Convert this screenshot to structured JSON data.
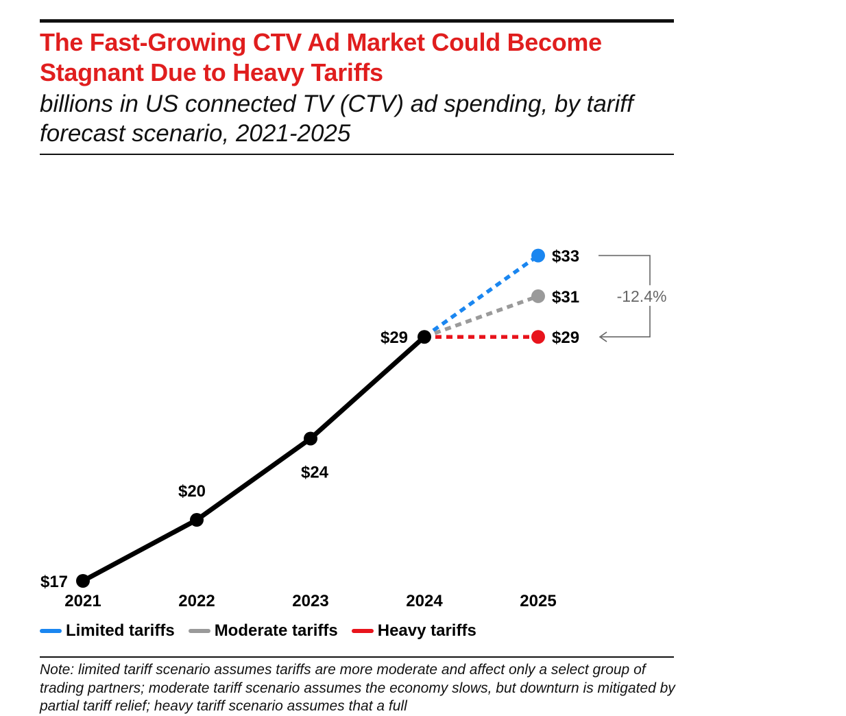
{
  "header": {
    "title": "The Fast-Growing CTV Ad Market Could Become Stagnant Due to Heavy Tariffs",
    "subtitle": "billions in US connected TV (CTV) ad spending, by tariff forecast scenario, 2021-2025"
  },
  "colors": {
    "title": "#e01e1e",
    "actual": "#000000",
    "limited": "#1a86f0",
    "moderate": "#9a9a9a",
    "heavy": "#e8141c",
    "annotation": "#666666"
  },
  "chart_data": {
    "type": "line",
    "title": "The Fast-Growing CTV Ad Market Could Become Stagnant Due to Heavy Tariffs",
    "subtitle": "billions in US connected TV (CTV) ad spending, by tariff forecast scenario, 2021-2025",
    "x": [
      "2021",
      "2022",
      "2023",
      "2024",
      "2025"
    ],
    "xlabel": "",
    "ylabel": "",
    "ylim": [
      17,
      33
    ],
    "grid": false,
    "actual": {
      "x": [
        "2021",
        "2022",
        "2023",
        "2024"
      ],
      "values": [
        17,
        20,
        24,
        29
      ],
      "labels": [
        "$17",
        "$20",
        "$24",
        "$29"
      ]
    },
    "series": [
      {
        "name": "Limited tariffs",
        "x": [
          "2024",
          "2025"
        ],
        "values": [
          29,
          33
        ],
        "end_label": "$33",
        "color": "#1a86f0",
        "style": "dashed"
      },
      {
        "name": "Moderate tariffs",
        "x": [
          "2024",
          "2025"
        ],
        "values": [
          29,
          31
        ],
        "end_label": "$31",
        "color": "#9a9a9a",
        "style": "dashed"
      },
      {
        "name": "Heavy tariffs",
        "x": [
          "2024",
          "2025"
        ],
        "values": [
          29,
          29
        ],
        "end_label": "$29",
        "color": "#e8141c",
        "style": "dashed"
      }
    ],
    "annotations": [
      {
        "text": "-12.4%",
        "from_series": "Limited tariffs",
        "to_series": "Heavy tariffs"
      }
    ],
    "legend": {
      "position": "bottom-left",
      "entries": [
        "Limited tariffs",
        "Moderate tariffs",
        "Heavy tariffs"
      ]
    }
  },
  "note": "Note: limited tariff scenario assumes tariffs are more moderate and affect only a select group of trading partners; moderate tariff scenario assumes the economy slows, but downturn is mitigated by partial tariff relief; heavy tariff scenario assumes that a full"
}
